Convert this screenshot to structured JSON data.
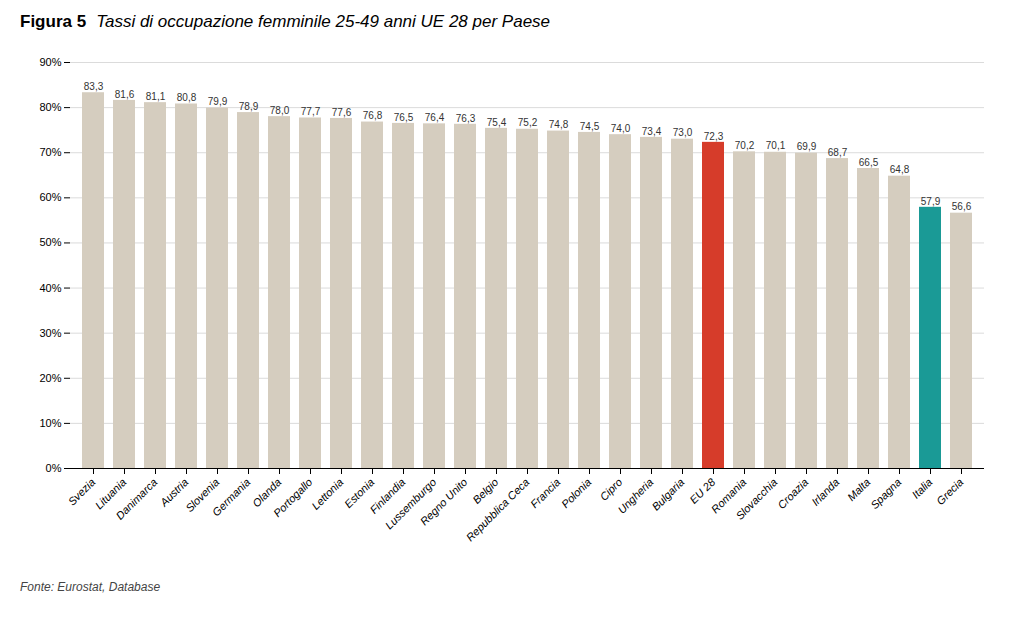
{
  "chart_data": {
    "type": "bar",
    "title": "Figura 5",
    "subtitle": "Tassi di occupazione femminile 25-49 anni UE 28 per Paese",
    "annotations": [
      "Fonte: Eurostat, Database"
    ],
    "categories": [
      "Svezia",
      "Lituania",
      "Danimarca",
      "Austria",
      "Slovenia",
      "Germania",
      "Olanda",
      "Portogallo",
      "Lettonia",
      "Estonia",
      "Finlandia",
      "Lussemburgo",
      "Regno Unito",
      "Belgio",
      "Repubblica Ceca",
      "Francia",
      "Polonia",
      "Cipro",
      "Ungheria",
      "Bulgaria",
      "EU 28",
      "Romania",
      "Slovacchia",
      "Croazia",
      "Irlanda",
      "Malta",
      "Spagna",
      "Italia",
      "Grecia"
    ],
    "values": [
      83.3,
      81.6,
      81.1,
      80.8,
      79.9,
      78.9,
      78.0,
      77.7,
      77.6,
      76.8,
      76.5,
      76.4,
      76.3,
      75.4,
      75.2,
      74.8,
      74.5,
      74.0,
      73.4,
      73.0,
      72.3,
      70.2,
      70.1,
      69.9,
      68.7,
      66.5,
      64.8,
      57.9,
      56.6
    ],
    "value_labels": [
      "83,3",
      "81,6",
      "81,1",
      "80,8",
      "79,9",
      "78,9",
      "78,0",
      "77,7",
      "77,6",
      "76,8",
      "76,5",
      "76,4",
      "76,3",
      "75,4",
      "75,2",
      "74,8",
      "74,5",
      "74,0",
      "73,4",
      "73,0",
      "72,3",
      "70,2",
      "70,1",
      "69,9",
      "68,7",
      "66,5",
      "64,8",
      "57,9",
      "56,6"
    ],
    "data_labels": true,
    "colors": [
      "#d5cdbf",
      "#d5cdbf",
      "#d5cdbf",
      "#d5cdbf",
      "#d5cdbf",
      "#d5cdbf",
      "#d5cdbf",
      "#d5cdbf",
      "#d5cdbf",
      "#d5cdbf",
      "#d5cdbf",
      "#d5cdbf",
      "#d5cdbf",
      "#d5cdbf",
      "#d5cdbf",
      "#d5cdbf",
      "#d5cdbf",
      "#d5cdbf",
      "#d5cdbf",
      "#d5cdbf",
      "#d63c2a",
      "#d5cdbf",
      "#d5cdbf",
      "#d5cdbf",
      "#d5cdbf",
      "#d5cdbf",
      "#d5cdbf",
      "#1a9a96",
      "#d5cdbf"
    ],
    "ylim": [
      0,
      90
    ],
    "yticks": [
      {
        "value": 0,
        "label": "0%"
      },
      {
        "value": 10,
        "label": "10%"
      },
      {
        "value": 20,
        "label": "20%"
      },
      {
        "value": 30,
        "label": "30%"
      },
      {
        "value": 40,
        "label": "40%"
      },
      {
        "value": 50,
        "label": "50%"
      },
      {
        "value": 60,
        "label": "60%"
      },
      {
        "value": 70,
        "label": "70%"
      },
      {
        "value": 80,
        "label": "80%"
      },
      {
        "value": 90,
        "label": "90%"
      }
    ],
    "grid": true
  }
}
